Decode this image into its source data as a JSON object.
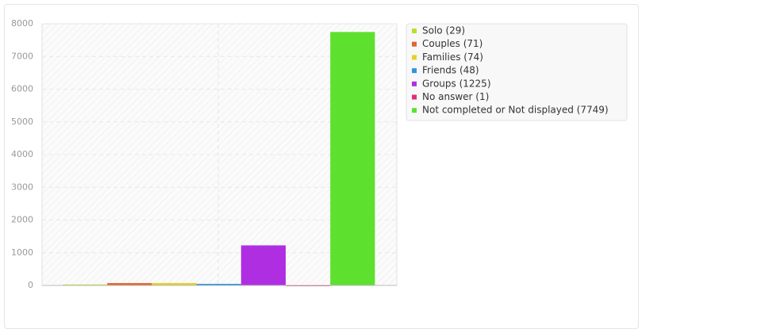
{
  "chart_data": {
    "type": "bar",
    "series": [
      {
        "name": "Solo (29)",
        "color": "#c4dc2c",
        "values": [
          29
        ]
      },
      {
        "name": "Couples (71)",
        "color": "#e0662e",
        "values": [
          71
        ]
      },
      {
        "name": "Families (74)",
        "color": "#e6d02e",
        "values": [
          74
        ]
      },
      {
        "name": "Friends (48)",
        "color": "#2f95de",
        "values": [
          48
        ]
      },
      {
        "name": "Groups (1225)",
        "color": "#b02ee2",
        "values": [
          1225
        ]
      },
      {
        "name": "No answer (1)",
        "color": "#e02e7c",
        "values": [
          1
        ]
      },
      {
        "name": "Not completed or Not displayed (7749)",
        "color": "#5ee02e",
        "values": [
          7749
        ]
      }
    ],
    "ylim": [
      0,
      8000
    ],
    "yticks": [
      0,
      1000,
      2000,
      3000,
      4000,
      5000,
      6000,
      7000,
      8000
    ],
    "grid": true
  }
}
